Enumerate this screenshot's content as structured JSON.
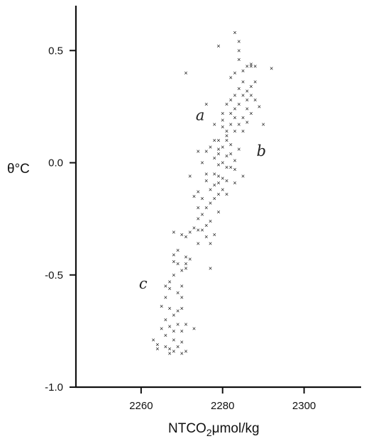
{
  "chart_data": {
    "type": "scatter",
    "title": "",
    "xlabel_main": "NTCO",
    "xlabel_sub": "2",
    "xlabel_rest": "μmol/kg",
    "ylabel": "θ°C",
    "xlim": [
      2244,
      2314
    ],
    "ylim": [
      -1.0,
      0.7
    ],
    "xticks": [
      2260,
      2280,
      2300
    ],
    "xtick_labels": [
      "2260",
      "2280",
      "2300"
    ],
    "yticks": [
      0.5,
      0.0,
      -0.5,
      -1.0
    ],
    "ytick_labels": [
      "0.5",
      "0.0",
      "-0.5",
      "-1.0"
    ],
    "marker_glyph": "×",
    "grid": false,
    "annotations": [
      {
        "text": "a",
        "x": 2274.5,
        "y": 0.19
      },
      {
        "text": "b",
        "x": 2289.5,
        "y": 0.03
      },
      {
        "text": "c",
        "x": 2260.5,
        "y": -0.56
      }
    ],
    "points": [
      [
        2283,
        0.58
      ],
      [
        2284,
        0.54
      ],
      [
        2279,
        0.52
      ],
      [
        2284,
        0.5
      ],
      [
        2284,
        0.46
      ],
      [
        2271,
        0.4
      ],
      [
        2292,
        0.42
      ],
      [
        2286,
        0.43
      ],
      [
        2287,
        0.43
      ],
      [
        2288,
        0.43
      ],
      [
        2285,
        0.41
      ],
      [
        2287,
        0.44
      ],
      [
        2283,
        0.4
      ],
      [
        2282,
        0.38
      ],
      [
        2285,
        0.36
      ],
      [
        2287,
        0.34
      ],
      [
        2288,
        0.36
      ],
      [
        2286,
        0.32
      ],
      [
        2284,
        0.33
      ],
      [
        2283,
        0.3
      ],
      [
        2285,
        0.3
      ],
      [
        2286,
        0.28
      ],
      [
        2287,
        0.3
      ],
      [
        2288,
        0.28
      ],
      [
        2282,
        0.28
      ],
      [
        2284,
        0.26
      ],
      [
        2281,
        0.26
      ],
      [
        2276,
        0.26
      ],
      [
        2280,
        0.22
      ],
      [
        2282,
        0.22
      ],
      [
        2283,
        0.2
      ],
      [
        2285,
        0.2
      ],
      [
        2286,
        0.18
      ],
      [
        2284,
        0.17
      ],
      [
        2282,
        0.17
      ],
      [
        2280,
        0.16
      ],
      [
        2281,
        0.14
      ],
      [
        2283,
        0.14
      ],
      [
        2285,
        0.14
      ],
      [
        2290,
        0.17
      ],
      [
        2281,
        0.12
      ],
      [
        2279,
        0.1
      ],
      [
        2281,
        0.1
      ],
      [
        2282,
        0.08
      ],
      [
        2280,
        0.07
      ],
      [
        2279,
        0.06
      ],
      [
        2278,
        0.1
      ],
      [
        2276,
        0.05
      ],
      [
        2284,
        0.06
      ],
      [
        2282,
        0.04
      ],
      [
        2281,
        0.03
      ],
      [
        2280,
        0.0
      ],
      [
        2279,
        -0.01
      ],
      [
        2281,
        -0.02
      ],
      [
        2283,
        -0.03
      ],
      [
        2278,
        -0.05
      ],
      [
        2276,
        -0.05
      ],
      [
        2279,
        -0.06
      ],
      [
        2280,
        -0.07
      ],
      [
        2281,
        -0.08
      ],
      [
        2279,
        -0.09
      ],
      [
        2278,
        -0.1
      ],
      [
        2283,
        -0.09
      ],
      [
        2285,
        -0.06
      ],
      [
        2280,
        -0.12
      ],
      [
        2279,
        -0.14
      ],
      [
        2281,
        -0.14
      ],
      [
        2278,
        -0.16
      ],
      [
        2274,
        -0.13
      ],
      [
        2275,
        -0.16
      ],
      [
        2277,
        -0.18
      ],
      [
        2276,
        -0.2
      ],
      [
        2279,
        -0.22
      ],
      [
        2275,
        -0.23
      ],
      [
        2274,
        -0.25
      ],
      [
        2277,
        -0.26
      ],
      [
        2276,
        -0.28
      ],
      [
        2274,
        -0.3
      ],
      [
        2273,
        -0.29
      ],
      [
        2272,
        -0.31
      ],
      [
        2271,
        -0.33
      ],
      [
        2270,
        -0.32
      ],
      [
        2268,
        -0.31
      ],
      [
        2276,
        -0.33
      ],
      [
        2277,
        -0.36
      ],
      [
        2274,
        -0.36
      ],
      [
        2269,
        -0.39
      ],
      [
        2271,
        -0.42
      ],
      [
        2269,
        -0.45
      ],
      [
        2268,
        -0.44
      ],
      [
        2271,
        -0.45
      ],
      [
        2270,
        -0.48
      ],
      [
        2268,
        -0.5
      ],
      [
        2267,
        -0.53
      ],
      [
        2270,
        -0.55
      ],
      [
        2267,
        -0.56
      ],
      [
        2266,
        -0.55
      ],
      [
        2269,
        -0.58
      ],
      [
        2266,
        -0.6
      ],
      [
        2270,
        -0.6
      ],
      [
        2265,
        -0.64
      ],
      [
        2267,
        -0.65
      ],
      [
        2269,
        -0.66
      ],
      [
        2270,
        -0.65
      ],
      [
        2268,
        -0.68
      ],
      [
        2266,
        -0.7
      ],
      [
        2267,
        -0.73
      ],
      [
        2269,
        -0.72
      ],
      [
        2271,
        -0.72
      ],
      [
        2265,
        -0.74
      ],
      [
        2268,
        -0.75
      ],
      [
        2270,
        -0.75
      ],
      [
        2266,
        -0.77
      ],
      [
        2268,
        -0.79
      ],
      [
        2270,
        -0.8
      ],
      [
        2263,
        -0.79
      ],
      [
        2264,
        -0.81
      ],
      [
        2266,
        -0.82
      ],
      [
        2267,
        -0.83
      ],
      [
        2268,
        -0.84
      ],
      [
        2269,
        -0.82
      ],
      [
        2271,
        -0.84
      ],
      [
        2267,
        -0.85
      ],
      [
        2270,
        -0.85
      ],
      [
        2264,
        -0.83
      ],
      [
        2273,
        -0.74
      ],
      [
        2275,
        -0.3
      ],
      [
        2278,
        -0.32
      ],
      [
        2277,
        -0.47
      ],
      [
        2271,
        -0.47
      ],
      [
        2268,
        -0.41
      ],
      [
        2272,
        -0.43
      ],
      [
        2274,
        -0.2
      ],
      [
        2276,
        -0.08
      ],
      [
        2277,
        -0.12
      ],
      [
        2278,
        0.02
      ],
      [
        2279,
        0.04
      ],
      [
        2283,
        0.01
      ],
      [
        2282,
        -0.02
      ],
      [
        2277,
        0.07
      ],
      [
        2275,
        0.0
      ],
      [
        2274,
        0.05
      ],
      [
        2272,
        -0.06
      ],
      [
        2273,
        -0.15
      ],
      [
        2287,
        0.22
      ],
      [
        2289,
        0.25
      ],
      [
        2286,
        0.24
      ],
      [
        2283,
        0.24
      ],
      [
        2278,
        0.17
      ],
      [
        2280,
        0.19
      ]
    ]
  }
}
